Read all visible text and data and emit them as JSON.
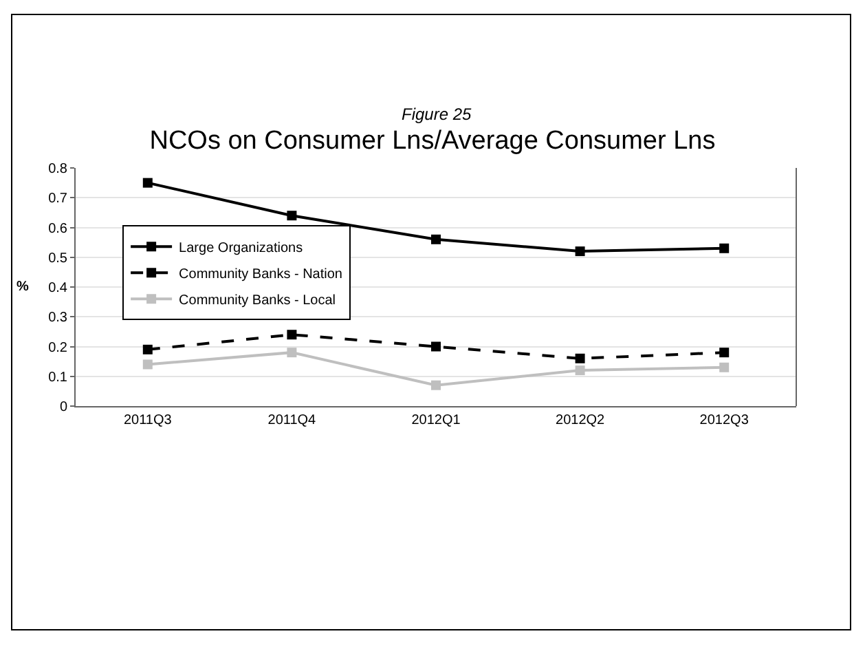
{
  "chart_data": {
    "type": "line",
    "subtitle": "Figure 25",
    "title": "NCOs on Consumer Lns/Average Consumer Lns",
    "ylabel": "%",
    "categories": [
      "2011Q3",
      "2011Q4",
      "2012Q1",
      "2012Q2",
      "2012Q3"
    ],
    "series": [
      {
        "name": "Large Organizations",
        "color": "#000000",
        "values": [
          0.75,
          0.64,
          0.56,
          0.52,
          0.53
        ],
        "line_style": "solid"
      },
      {
        "name": "Community Banks - Nation",
        "color": "#000000",
        "values": [
          0.19,
          0.24,
          0.2,
          0.16,
          0.18
        ],
        "line_style": "dashed"
      },
      {
        "name": "Community Banks - Local",
        "color": "#bfbfbf",
        "values": [
          0.14,
          0.18,
          0.07,
          0.12,
          0.13
        ],
        "line_style": "solid"
      }
    ],
    "ylim": [
      0,
      0.8
    ],
    "yticks": [
      0,
      0.1,
      0.2,
      0.3,
      0.4,
      0.5,
      0.6,
      0.7,
      0.8
    ],
    "grid": "y",
    "legend": "left",
    "marker": "square"
  }
}
